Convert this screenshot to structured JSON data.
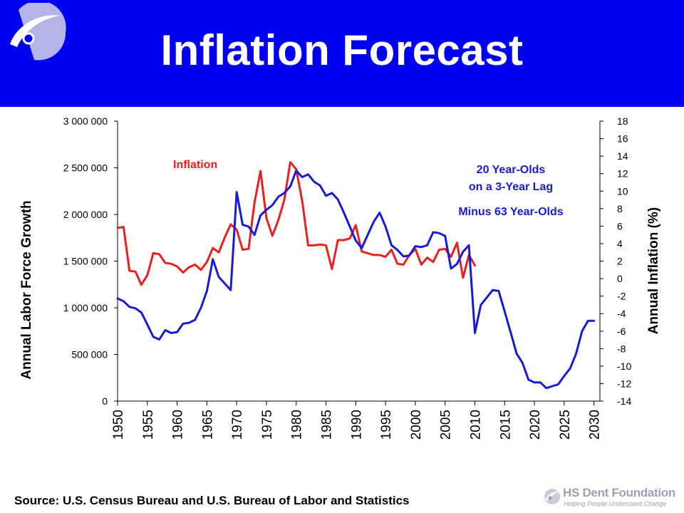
{
  "slide": {
    "title": "Inflation Forecast",
    "source": "Source: U.S. Census Bureau and U.S. Bureau of Labor and Statistics",
    "header_color": "#0000f0",
    "logo_icon": "circle-swoosh-logo-icon",
    "footer_logo": {
      "name": "HS Dent Foundation",
      "tagline": "Helping People Understand Change",
      "icon": "swoosh-logo-icon"
    }
  },
  "chart_data": {
    "type": "line",
    "title": "Inflation Forecast",
    "xlabel": "",
    "ylabel_left": "Annual Labor Force Growth",
    "ylabel_right": "Annual Inflation (%)",
    "xlim": [
      1950,
      2031
    ],
    "ylim_left": [
      0,
      3000000
    ],
    "ylim_right": [
      -14,
      18
    ],
    "x_ticks": [
      "1950",
      "1955",
      "1960",
      "1965",
      "1970",
      "1975",
      "1980",
      "1985",
      "1990",
      "1995",
      "2000",
      "2005",
      "2010",
      "2015",
      "2020",
      "2025",
      "2030"
    ],
    "y_left_ticks": [
      "0",
      "500 000",
      "1 000 000",
      "1 500 000",
      "2 000 000",
      "2 500 000",
      "3 000 000"
    ],
    "y_right_ticks": [
      "-14",
      "-12",
      "-10",
      "-8",
      "-6",
      "-4",
      "-2",
      "0",
      "2",
      "4",
      "6",
      "8",
      "10",
      "12",
      "14",
      "16",
      "18"
    ],
    "grid": false,
    "annotations": [
      {
        "text": "Inflation",
        "color": "#e82020"
      },
      {
        "text": "20 Year-Olds",
        "color": "#1a1ad0"
      },
      {
        "text": "on a 3-Year Lag",
        "color": "#1a1ad0"
      },
      {
        "text": "Minus 63 Year-Olds",
        "color": "#1a1ad0"
      }
    ],
    "series": [
      {
        "name": "Inflation",
        "axis": "right",
        "color": "#e82020",
        "x": [
          1950,
          1951,
          1952,
          1953,
          1954,
          1955,
          1956,
          1957,
          1958,
          1959,
          1960,
          1961,
          1962,
          1963,
          1964,
          1965,
          1966,
          1967,
          1968,
          1969,
          1970,
          1971,
          1972,
          1973,
          1974,
          1975,
          1976,
          1977,
          1978,
          1979,
          1980,
          1981,
          1982,
          1983,
          1984,
          1985,
          1986,
          1987,
          1988,
          1989,
          1990,
          1991,
          1992,
          1993,
          1994,
          1995,
          1996,
          1997,
          1998,
          1999,
          2000,
          2001,
          2002,
          2003,
          2004,
          2005,
          2006,
          2007,
          2008,
          2009,
          2010
        ],
        "values": [
          5.8,
          5.9,
          0.9,
          0.8,
          -0.7,
          0.4,
          2.9,
          2.8,
          1.8,
          1.7,
          1.4,
          0.7,
          1.3,
          1.6,
          1.0,
          1.9,
          3.5,
          3.0,
          4.7,
          6.2,
          5.6,
          3.3,
          3.4,
          8.7,
          12.3,
          6.9,
          4.9,
          6.7,
          9.0,
          13.3,
          12.5,
          8.9,
          3.8,
          3.8,
          3.9,
          3.8,
          1.1,
          4.4,
          4.4,
          4.6,
          6.1,
          3.1,
          2.9,
          2.7,
          2.7,
          2.5,
          3.3,
          1.7,
          1.6,
          2.7,
          3.4,
          1.6,
          2.4,
          1.9,
          3.3,
          3.4,
          2.5,
          4.1,
          0.1,
          2.7,
          1.5
        ]
      },
      {
        "name": "20 Year-Olds on a 3-Year Lag Minus 63 Year-Olds",
        "axis": "left",
        "color": "#1a1ad0",
        "x": [
          1950,
          1951,
          1952,
          1953,
          1954,
          1955,
          1956,
          1957,
          1958,
          1959,
          1960,
          1961,
          1962,
          1963,
          1964,
          1965,
          1966,
          1967,
          1968,
          1969,
          1970,
          1971,
          1972,
          1973,
          1974,
          1975,
          1976,
          1977,
          1978,
          1979,
          1980,
          1981,
          1982,
          1983,
          1984,
          1985,
          1986,
          1987,
          1988,
          1989,
          1990,
          1991,
          1992,
          1993,
          1994,
          1995,
          1996,
          1997,
          1998,
          1999,
          2000,
          2001,
          2002,
          2003,
          2004,
          2005,
          2006,
          2007,
          2008,
          2009,
          2010,
          2011,
          2012,
          2013,
          2014,
          2015,
          2016,
          2017,
          2018,
          2019,
          2020,
          2021,
          2022,
          2023,
          2024,
          2025,
          2026,
          2027,
          2028,
          2029,
          2030
        ],
        "values": [
          1100000,
          1070000,
          1010000,
          995000,
          950000,
          820000,
          690000,
          660000,
          760000,
          730000,
          740000,
          830000,
          840000,
          870000,
          1000000,
          1180000,
          1520000,
          1330000,
          1260000,
          1190000,
          2240000,
          1890000,
          1870000,
          1780000,
          1990000,
          2050000,
          2100000,
          2190000,
          2230000,
          2300000,
          2470000,
          2400000,
          2430000,
          2350000,
          2310000,
          2200000,
          2230000,
          2160000,
          2020000,
          1870000,
          1720000,
          1640000,
          1780000,
          1920000,
          2020000,
          1870000,
          1670000,
          1620000,
          1550000,
          1560000,
          1660000,
          1650000,
          1670000,
          1810000,
          1800000,
          1770000,
          1420000,
          1470000,
          1600000,
          1670000,
          730000,
          1030000,
          1110000,
          1190000,
          1180000,
          960000,
          740000,
          510000,
          410000,
          230000,
          200000,
          200000,
          140000,
          160000,
          180000,
          270000,
          350000,
          510000,
          750000,
          860000,
          860000
        ]
      }
    ]
  }
}
